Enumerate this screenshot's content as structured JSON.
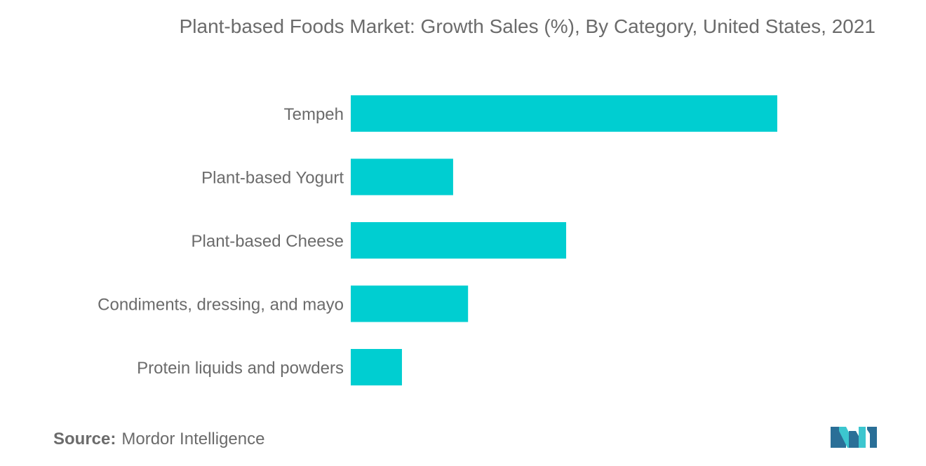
{
  "title": "Plant-based Foods Market: Growth Sales (%), By Category, United States, 2021",
  "source": {
    "label": "Source:",
    "text": "Mordor Intelligence"
  },
  "colors": {
    "bar": "#00CED1",
    "text": "#6b6b6b",
    "logo_dark": "#2a6f97",
    "logo_light": "#3cc6cf"
  },
  "logo_icon": "mordor-intelligence-logo-icon",
  "chart_data": {
    "type": "bar",
    "orientation": "horizontal",
    "categories": [
      "Tempeh",
      "Plant-based Yogurt",
      "Plant-based Cheese",
      "Condiments, dressing, and mayo",
      "Protein liquids and powders"
    ],
    "values": [
      100,
      24,
      50.5,
      27.5,
      12
    ],
    "xlim": [
      0,
      100
    ],
    "grid": false,
    "legend": "none",
    "axis_labels_shown": false
  }
}
